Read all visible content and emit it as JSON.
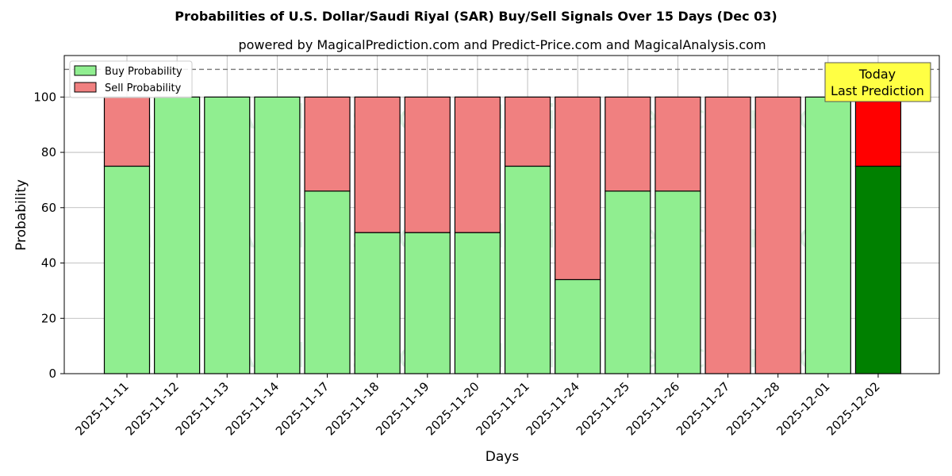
{
  "chart_data": {
    "type": "bar",
    "stacked": true,
    "title": "Probabilities of U.S. Dollar/Saudi Riyal (SAR) Buy/Sell Signals Over 15 Days (Dec 03)",
    "subtitle": "powered by MagicalPrediction.com and Predict-Price.com and MagicalAnalysis.com",
    "xlabel": "Days",
    "ylabel": "Probability",
    "ylim": [
      0,
      115
    ],
    "yticks": [
      "0",
      "20",
      "40",
      "60",
      "80",
      "100"
    ],
    "grid": true,
    "reference_line": 110,
    "legend_position": "top-left",
    "categories": [
      "2025-11-11",
      "2025-11-12",
      "2025-11-13",
      "2025-11-14",
      "2025-11-17",
      "2025-11-18",
      "2025-11-19",
      "2025-11-20",
      "2025-11-21",
      "2025-11-24",
      "2025-11-25",
      "2025-11-26",
      "2025-11-27",
      "2025-11-28",
      "2025-12-01",
      "2025-12-02"
    ],
    "series": [
      {
        "name": "Buy Probability",
        "color": "#90ee90",
        "values": [
          75,
          100,
          100,
          100,
          66,
          51,
          51,
          51,
          75,
          34,
          66,
          66,
          0,
          0,
          100,
          75
        ]
      },
      {
        "name": "Sell Probability",
        "color": "#f08080",
        "values": [
          25,
          0,
          0,
          0,
          34,
          49,
          49,
          49,
          25,
          66,
          34,
          34,
          100,
          100,
          0,
          25
        ]
      }
    ],
    "highlight": {
      "index": 15,
      "buy_color": "#008000",
      "sell_color": "#ff0000"
    },
    "annotation": {
      "lines": [
        "Today",
        "Last Prediction"
      ],
      "background": "#ffff44"
    },
    "watermarks": [
      "MagicalAnalysis.com",
      "MagicalPrediction.com"
    ]
  }
}
